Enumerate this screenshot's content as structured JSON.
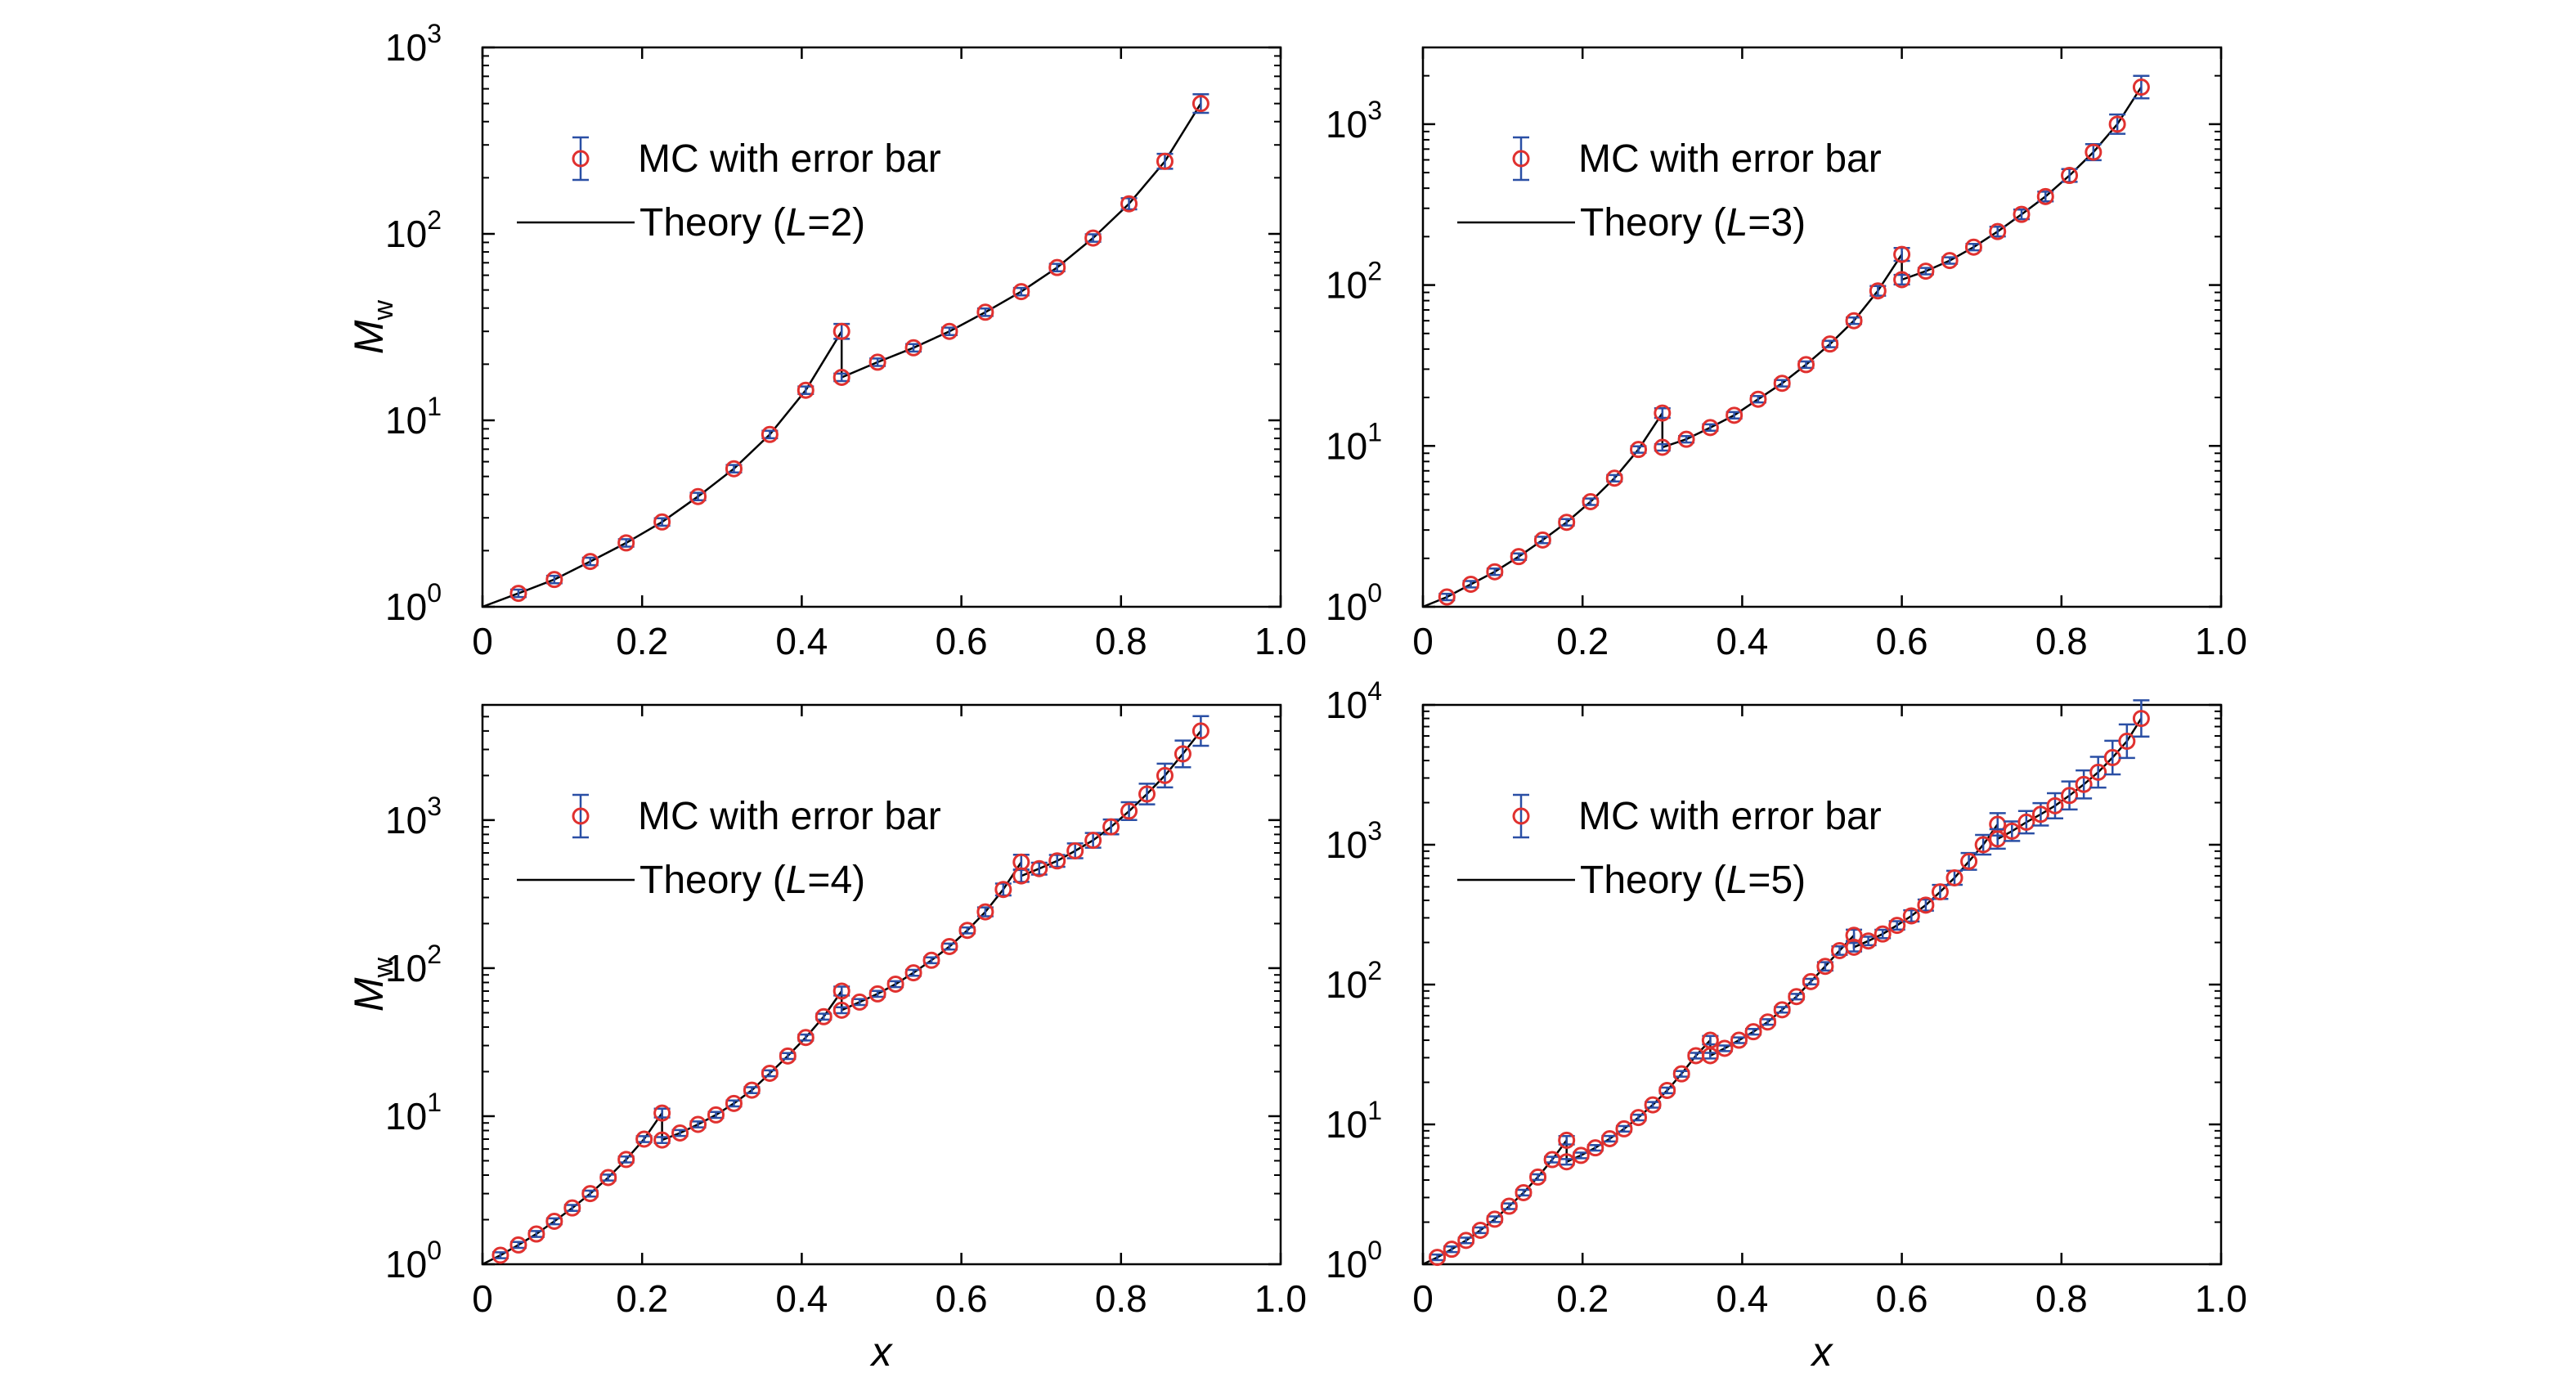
{
  "legend": {
    "mc_label": "MC with error bar",
    "theory_prefix": "Theory (",
    "theory_var": "L",
    "theory_values": [
      "=2)",
      "=3)",
      "=4)",
      "=5)"
    ]
  },
  "colors": {
    "marker": "#e0312f",
    "errorbar": "#2a4fa5",
    "line": "#000000",
    "axis": "#000000"
  },
  "chart_data": [
    {
      "type": "line",
      "L": 2,
      "xlabel": "",
      "ylabel_main": "M",
      "ylabel_sub": "w",
      "yscale": "log",
      "xlim": [
        0,
        1.0
      ],
      "ylim": [
        1,
        1000
      ],
      "xticks": [
        "0",
        "0.2",
        "0.4",
        "0.6",
        "0.8",
        "1.0"
      ],
      "yticks": [
        {
          "base": "10",
          "exp": "0"
        },
        {
          "base": "10",
          "exp": "1"
        },
        {
          "base": "10",
          "exp": "2"
        },
        {
          "base": "10",
          "exp": "3"
        }
      ],
      "legend_position": "upper-left",
      "theory": {
        "x": [
          0,
          0.045,
          0.09,
          0.135,
          0.18,
          0.225,
          0.27,
          0.315,
          0.36,
          0.405,
          0.45,
          0.45,
          0.495,
          0.54,
          0.585,
          0.63,
          0.675,
          0.72,
          0.765,
          0.81,
          0.855,
          0.9
        ],
        "y": [
          1.0,
          1.18,
          1.4,
          1.75,
          2.2,
          2.85,
          3.9,
          5.5,
          8.4,
          14.5,
          30,
          17,
          20.5,
          24.5,
          30,
          38,
          49,
          66,
          95,
          145,
          245,
          500
        ]
      },
      "mc": {
        "x": [
          0.045,
          0.09,
          0.135,
          0.18,
          0.225,
          0.27,
          0.315,
          0.36,
          0.405,
          0.45,
          0.45,
          0.495,
          0.54,
          0.585,
          0.63,
          0.675,
          0.72,
          0.765,
          0.81,
          0.855,
          0.9
        ],
        "y": [
          1.18,
          1.4,
          1.75,
          2.2,
          2.85,
          3.9,
          5.5,
          8.4,
          14.5,
          30,
          17,
          20.5,
          24.5,
          30,
          38,
          49,
          66,
          95,
          145,
          245,
          500
        ],
        "err": [
          0.02,
          0.02,
          0.02,
          0.02,
          0.02,
          0.02,
          0.02,
          0.02,
          0.02,
          0.04,
          0.02,
          0.02,
          0.02,
          0.02,
          0.02,
          0.02,
          0.02,
          0.02,
          0.03,
          0.04,
          0.05
        ]
      }
    },
    {
      "type": "line",
      "L": 3,
      "xlabel": "",
      "ylabel_main": "",
      "ylabel_sub": "",
      "yscale": "log",
      "xlim": [
        0,
        1.0
      ],
      "ylim": [
        1,
        3000
      ],
      "xticks": [
        "0",
        "0.2",
        "0.4",
        "0.6",
        "0.8",
        "1.0"
      ],
      "yticks": [
        {
          "base": "10",
          "exp": "0"
        },
        {
          "base": "10",
          "exp": "1"
        },
        {
          "base": "10",
          "exp": "2"
        },
        {
          "base": "10",
          "exp": "3"
        }
      ],
      "legend_position": "upper-left",
      "theory": {
        "x": [
          0,
          0.03,
          0.06,
          0.09,
          0.12,
          0.15,
          0.18,
          0.21,
          0.24,
          0.27,
          0.3,
          0.3,
          0.33,
          0.36,
          0.39,
          0.42,
          0.45,
          0.48,
          0.51,
          0.54,
          0.57,
          0.6,
          0.6,
          0.63,
          0.66,
          0.69,
          0.72,
          0.75,
          0.78,
          0.81,
          0.84,
          0.87,
          0.9
        ],
        "y": [
          1.0,
          1.15,
          1.38,
          1.65,
          2.05,
          2.6,
          3.35,
          4.5,
          6.3,
          9.5,
          16,
          9.8,
          11,
          13,
          15.5,
          19.5,
          24.5,
          32,
          43,
          60,
          92,
          155,
          108,
          122,
          142,
          172,
          215,
          275,
          355,
          480,
          670,
          1000,
          1700
        ]
      },
      "mc": {
        "x": [
          0.03,
          0.06,
          0.09,
          0.12,
          0.15,
          0.18,
          0.21,
          0.24,
          0.27,
          0.3,
          0.3,
          0.33,
          0.36,
          0.39,
          0.42,
          0.45,
          0.48,
          0.51,
          0.54,
          0.57,
          0.6,
          0.6,
          0.63,
          0.66,
          0.69,
          0.72,
          0.75,
          0.78,
          0.81,
          0.84,
          0.87,
          0.9
        ],
        "y": [
          1.15,
          1.38,
          1.65,
          2.05,
          2.6,
          3.35,
          4.5,
          6.3,
          9.5,
          16,
          9.8,
          11,
          13,
          15.5,
          19.5,
          24.5,
          32,
          43,
          60,
          92,
          155,
          108,
          122,
          142,
          172,
          215,
          275,
          355,
          480,
          670,
          1000,
          1700
        ],
        "err": [
          0.02,
          0.02,
          0.02,
          0.02,
          0.02,
          0.02,
          0.02,
          0.02,
          0.02,
          0.03,
          0.02,
          0.02,
          0.02,
          0.02,
          0.02,
          0.02,
          0.02,
          0.02,
          0.02,
          0.03,
          0.04,
          0.03,
          0.02,
          0.02,
          0.02,
          0.03,
          0.03,
          0.03,
          0.04,
          0.05,
          0.06,
          0.07
        ]
      }
    },
    {
      "type": "line",
      "L": 4,
      "xlabel": "x",
      "ylabel_main": "M",
      "ylabel_sub": "w",
      "yscale": "log",
      "xlim": [
        0,
        1.0
      ],
      "ylim": [
        1,
        6000
      ],
      "xticks": [
        "0",
        "0.2",
        "0.4",
        "0.6",
        "0.8",
        "1.0"
      ],
      "yticks": [
        {
          "base": "10",
          "exp": "0"
        },
        {
          "base": "10",
          "exp": "1"
        },
        {
          "base": "10",
          "exp": "2"
        },
        {
          "base": "10",
          "exp": "3"
        }
      ],
      "legend_position": "upper-left",
      "theory": {
        "x": [
          0,
          0.0225,
          0.045,
          0.0675,
          0.09,
          0.1125,
          0.135,
          0.1575,
          0.18,
          0.2025,
          0.225,
          0.225,
          0.2475,
          0.27,
          0.2925,
          0.315,
          0.3375,
          0.36,
          0.3825,
          0.405,
          0.4275,
          0.45,
          0.45,
          0.4725,
          0.495,
          0.5175,
          0.54,
          0.5625,
          0.585,
          0.6075,
          0.63,
          0.6525,
          0.675,
          0.675,
          0.6975,
          0.72,
          0.7425,
          0.765,
          0.7875,
          0.81,
          0.8325,
          0.855,
          0.8775,
          0.9
        ],
        "y": [
          1.0,
          1.15,
          1.35,
          1.6,
          1.95,
          2.4,
          3.0,
          3.85,
          5.1,
          7.0,
          10.5,
          6.9,
          7.7,
          8.8,
          10.2,
          12.2,
          15,
          19.5,
          25.5,
          34,
          47,
          70,
          52,
          59,
          67,
          78,
          93,
          113,
          140,
          180,
          240,
          340,
          520,
          420,
          470,
          530,
          620,
          730,
          900,
          1150,
          1500,
          2000,
          2800,
          4000
        ]
      },
      "mc": {
        "x": [
          0.0225,
          0.045,
          0.0675,
          0.09,
          0.1125,
          0.135,
          0.1575,
          0.18,
          0.2025,
          0.225,
          0.225,
          0.2475,
          0.27,
          0.2925,
          0.315,
          0.3375,
          0.36,
          0.3825,
          0.405,
          0.4275,
          0.45,
          0.45,
          0.4725,
          0.495,
          0.5175,
          0.54,
          0.5625,
          0.585,
          0.6075,
          0.63,
          0.6525,
          0.675,
          0.675,
          0.6975,
          0.72,
          0.7425,
          0.765,
          0.7875,
          0.81,
          0.8325,
          0.855,
          0.8775,
          0.9
        ],
        "y": [
          1.15,
          1.35,
          1.6,
          1.95,
          2.4,
          3.0,
          3.85,
          5.1,
          7.0,
          10.5,
          6.9,
          7.7,
          8.8,
          10.2,
          12.2,
          15,
          19.5,
          25.5,
          34,
          47,
          70,
          52,
          59,
          67,
          78,
          93,
          113,
          140,
          180,
          240,
          340,
          520,
          420,
          470,
          530,
          620,
          730,
          900,
          1150,
          1500,
          2000,
          2800,
          4000
        ],
        "err": [
          0.02,
          0.02,
          0.02,
          0.02,
          0.02,
          0.02,
          0.02,
          0.02,
          0.02,
          0.03,
          0.02,
          0.02,
          0.02,
          0.02,
          0.02,
          0.02,
          0.02,
          0.02,
          0.02,
          0.02,
          0.03,
          0.02,
          0.02,
          0.02,
          0.02,
          0.02,
          0.02,
          0.02,
          0.02,
          0.03,
          0.04,
          0.05,
          0.04,
          0.04,
          0.04,
          0.05,
          0.05,
          0.05,
          0.06,
          0.07,
          0.08,
          0.09,
          0.1
        ]
      }
    },
    {
      "type": "line",
      "L": 5,
      "xlabel": "x",
      "ylabel_main": "",
      "ylabel_sub": "",
      "yscale": "log",
      "xlim": [
        0,
        1.0
      ],
      "ylim": [
        1,
        10000
      ],
      "xticks": [
        "0",
        "0.2",
        "0.4",
        "0.6",
        "0.8",
        "1.0"
      ],
      "yticks": [
        {
          "base": "10",
          "exp": "0"
        },
        {
          "base": "10",
          "exp": "1"
        },
        {
          "base": "10",
          "exp": "2"
        },
        {
          "base": "10",
          "exp": "3"
        },
        {
          "base": "10",
          "exp": "4"
        }
      ],
      "legend_position": "upper-left",
      "theory": {
        "x": [
          0,
          0.018,
          0.036,
          0.054,
          0.072,
          0.09,
          0.108,
          0.126,
          0.144,
          0.162,
          0.18,
          0.18,
          0.198,
          0.216,
          0.234,
          0.252,
          0.27,
          0.288,
          0.306,
          0.324,
          0.342,
          0.36,
          0.36,
          0.378,
          0.396,
          0.414,
          0.432,
          0.45,
          0.468,
          0.486,
          0.504,
          0.522,
          0.54,
          0.54,
          0.558,
          0.576,
          0.594,
          0.612,
          0.63,
          0.648,
          0.666,
          0.684,
          0.702,
          0.72,
          0.72,
          0.738,
          0.756,
          0.774,
          0.792,
          0.81,
          0.828,
          0.846,
          0.864,
          0.882,
          0.9
        ],
        "y": [
          1.0,
          1.12,
          1.28,
          1.48,
          1.75,
          2.1,
          2.6,
          3.25,
          4.2,
          5.6,
          7.7,
          5.4,
          6.0,
          6.8,
          7.9,
          9.3,
          11.2,
          13.8,
          17.5,
          23,
          31,
          40,
          31,
          35,
          40,
          46,
          54,
          66,
          82,
          105,
          135,
          175,
          225,
          185,
          205,
          230,
          265,
          310,
          370,
          460,
          580,
          760,
          1000,
          1400,
          1100,
          1250,
          1450,
          1650,
          1900,
          2250,
          2700,
          3300,
          4200,
          5500,
          8000
        ]
      },
      "mc": {
        "x": [
          0.018,
          0.036,
          0.054,
          0.072,
          0.09,
          0.108,
          0.126,
          0.144,
          0.162,
          0.18,
          0.18,
          0.198,
          0.216,
          0.234,
          0.252,
          0.27,
          0.288,
          0.306,
          0.324,
          0.342,
          0.36,
          0.36,
          0.378,
          0.396,
          0.414,
          0.432,
          0.45,
          0.468,
          0.486,
          0.504,
          0.522,
          0.54,
          0.54,
          0.558,
          0.576,
          0.594,
          0.612,
          0.63,
          0.648,
          0.666,
          0.684,
          0.702,
          0.72,
          0.72,
          0.738,
          0.756,
          0.774,
          0.792,
          0.81,
          0.828,
          0.846,
          0.864,
          0.882,
          0.9
        ],
        "y": [
          1.12,
          1.28,
          1.48,
          1.75,
          2.1,
          2.6,
          3.25,
          4.2,
          5.6,
          7.7,
          5.4,
          6.0,
          6.8,
          7.9,
          9.3,
          11.2,
          13.8,
          17.5,
          23,
          31,
          40,
          31,
          35,
          40,
          46,
          54,
          66,
          82,
          105,
          135,
          175,
          225,
          185,
          205,
          230,
          265,
          310,
          370,
          460,
          580,
          760,
          1000,
          1400,
          1100,
          1250,
          1450,
          1650,
          1900,
          2250,
          2700,
          3300,
          4200,
          5500,
          8000
        ],
        "err": [
          0.02,
          0.02,
          0.02,
          0.02,
          0.02,
          0.02,
          0.02,
          0.02,
          0.02,
          0.03,
          0.02,
          0.02,
          0.02,
          0.02,
          0.02,
          0.02,
          0.02,
          0.02,
          0.02,
          0.02,
          0.03,
          0.02,
          0.02,
          0.02,
          0.02,
          0.02,
          0.02,
          0.02,
          0.02,
          0.03,
          0.03,
          0.04,
          0.03,
          0.03,
          0.03,
          0.03,
          0.04,
          0.04,
          0.05,
          0.05,
          0.06,
          0.07,
          0.08,
          0.07,
          0.07,
          0.08,
          0.08,
          0.09,
          0.1,
          0.1,
          0.11,
          0.12,
          0.12,
          0.13
        ]
      }
    }
  ]
}
